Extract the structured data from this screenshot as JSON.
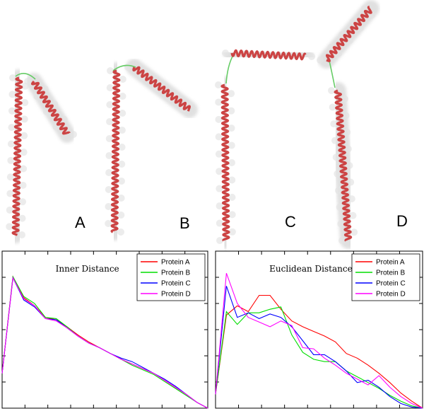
{
  "panels": [
    {
      "label": "A"
    },
    {
      "label": "B"
    },
    {
      "label": "C"
    },
    {
      "label": "D"
    }
  ],
  "colors": {
    "helix": "#cc4444",
    "surface": "#c8c8c8",
    "loop": "#66cc66",
    "protein_a": "#ff0000",
    "protein_b": "#00dd00",
    "protein_c": "#0000ff",
    "protein_d": "#ff00ff"
  },
  "chart_data": [
    {
      "type": "line",
      "title": "Inner Distance",
      "xlabel": "",
      "ylabel": "",
      "xlim": [
        0,
        19
      ],
      "ylim": [
        0,
        0.135
      ],
      "grid": false,
      "legend_position": "top-right",
      "series": [
        {
          "name": "Protein A",
          "color": "#ff0000",
          "x": [
            0,
            1,
            2,
            3,
            4,
            5,
            6,
            7,
            8,
            9,
            10,
            11,
            12,
            13,
            14,
            15,
            16,
            17,
            18,
            19
          ],
          "y": [
            0.03,
            0.113,
            0.095,
            0.088,
            0.078,
            0.076,
            0.07,
            0.063,
            0.057,
            0.052,
            0.047,
            0.042,
            0.038,
            0.034,
            0.03,
            0.024,
            0.018,
            0.012,
            0.005,
            0.0
          ]
        },
        {
          "name": "Protein B",
          "color": "#00dd00",
          "x": [
            0,
            1,
            2,
            3,
            4,
            5,
            6,
            7,
            8,
            9,
            10,
            11,
            12,
            13,
            14,
            15,
            16,
            17,
            18,
            19
          ],
          "y": [
            0.03,
            0.113,
            0.096,
            0.09,
            0.078,
            0.077,
            0.07,
            0.062,
            0.056,
            0.052,
            0.047,
            0.042,
            0.037,
            0.033,
            0.029,
            0.023,
            0.017,
            0.011,
            0.005,
            0.0
          ]
        },
        {
          "name": "Protein C",
          "color": "#0000ff",
          "x": [
            0,
            1,
            2,
            3,
            4,
            5,
            6,
            7,
            8,
            9,
            10,
            11,
            12,
            13,
            14,
            15,
            16,
            17,
            18,
            19
          ],
          "y": [
            0.03,
            0.112,
            0.093,
            0.087,
            0.077,
            0.076,
            0.069,
            0.062,
            0.056,
            0.052,
            0.047,
            0.043,
            0.04,
            0.035,
            0.03,
            0.025,
            0.019,
            0.012,
            0.005,
            0.0
          ]
        },
        {
          "name": "Protein D",
          "color": "#ff00ff",
          "x": [
            0,
            1,
            2,
            3,
            4,
            5,
            6,
            7,
            8,
            9,
            10,
            11,
            12,
            13,
            14,
            15,
            16,
            17,
            18,
            19
          ],
          "y": [
            0.03,
            0.112,
            0.094,
            0.088,
            0.077,
            0.075,
            0.069,
            0.062,
            0.056,
            0.052,
            0.047,
            0.042,
            0.038,
            0.034,
            0.03,
            0.024,
            0.018,
            0.012,
            0.005,
            0.0
          ]
        }
      ]
    },
    {
      "type": "line",
      "title": "Euclidean Distance",
      "xlabel": "",
      "ylabel": "",
      "xlim": [
        0,
        19
      ],
      "ylim": [
        0,
        0.135
      ],
      "grid": false,
      "legend_position": "top-right",
      "series": [
        {
          "name": "Protein A",
          "color": "#ff0000",
          "x": [
            0,
            1,
            2,
            3,
            4,
            5,
            6,
            7,
            8,
            9,
            10,
            11,
            12,
            13,
            14,
            15,
            16,
            17,
            18,
            19
          ],
          "y": [
            0.012,
            0.08,
            0.088,
            0.083,
            0.097,
            0.097,
            0.085,
            0.075,
            0.07,
            0.066,
            0.062,
            0.057,
            0.047,
            0.043,
            0.037,
            0.03,
            0.022,
            0.013,
            0.006,
            0.0
          ]
        },
        {
          "name": "Protein B",
          "color": "#00dd00",
          "x": [
            0,
            1,
            2,
            3,
            4,
            5,
            6,
            7,
            8,
            9,
            10,
            11,
            12,
            13,
            14,
            15,
            16,
            17,
            18,
            19
          ],
          "y": [
            0.012,
            0.083,
            0.072,
            0.082,
            0.082,
            0.085,
            0.087,
            0.063,
            0.048,
            0.042,
            0.04,
            0.04,
            0.032,
            0.027,
            0.022,
            0.017,
            0.011,
            0.006,
            0.002,
            0.0
          ]
        },
        {
          "name": "Protein C",
          "color": "#0000ff",
          "x": [
            0,
            1,
            2,
            3,
            4,
            5,
            6,
            7,
            8,
            9,
            10,
            11,
            12,
            13,
            14,
            15,
            16,
            17,
            18,
            19
          ],
          "y": [
            0.012,
            0.105,
            0.078,
            0.082,
            0.077,
            0.081,
            0.078,
            0.07,
            0.058,
            0.046,
            0.046,
            0.04,
            0.032,
            0.022,
            0.024,
            0.018,
            0.01,
            0.004,
            0.001,
            0.0
          ]
        },
        {
          "name": "Protein D",
          "color": "#ff00ff",
          "x": [
            0,
            1,
            2,
            3,
            4,
            5,
            6,
            7,
            8,
            9,
            10,
            11,
            12,
            13,
            14,
            15,
            16,
            17,
            18,
            19
          ],
          "y": [
            0.012,
            0.116,
            0.09,
            0.078,
            0.074,
            0.07,
            0.075,
            0.071,
            0.052,
            0.051,
            0.043,
            0.037,
            0.03,
            0.025,
            0.02,
            0.028,
            0.018,
            0.01,
            0.004,
            0.0
          ]
        }
      ]
    }
  ]
}
